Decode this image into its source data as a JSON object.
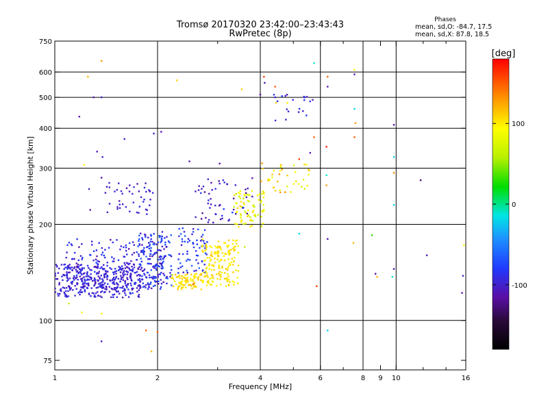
{
  "chart_data": {
    "type": "scatter",
    "title": "Tromsø 20170320 23:42:00–23:43:43",
    "subtitle": "RwPretec (8p)",
    "xlabel": "Frequency [MHz]",
    "ylabel": "Stationary phase Virtual Height [km]",
    "x_scale": "log",
    "y_scale": "log",
    "xlim": [
      1,
      16
    ],
    "ylim": [
      70,
      750
    ],
    "x_ticks": [
      1,
      2,
      4,
      6,
      8,
      9,
      10,
      16
    ],
    "x_tick_labels": [
      "1",
      "2",
      "4",
      "6",
      "8",
      "9",
      "10",
      "16"
    ],
    "x_grid": [
      2,
      4,
      6,
      8,
      10
    ],
    "x_minor_ticks": [
      3,
      5,
      7,
      9,
      12,
      14
    ],
    "y_ticks": [
      75,
      100,
      200,
      300,
      400,
      500,
      600,
      750
    ],
    "y_tick_labels": [
      "75",
      "100",
      "200",
      "300",
      "400",
      "500",
      "600",
      "750"
    ],
    "y_grid": [
      100,
      200,
      300,
      400,
      500,
      600
    ],
    "grid": true,
    "legend": {
      "title": "Phases",
      "lines": [
        "mean, sd,O: -84.7, 17.5",
        "mean, sd,X: 87.8, 18.5"
      ],
      "placement": "top-right"
    },
    "colorbar": {
      "label": "[deg]",
      "range": [
        -180,
        180
      ],
      "ticks": [
        -100,
        0,
        100
      ],
      "tick_labels": [
        "-100",
        "0",
        "100"
      ],
      "colormap": "rainbow: black-purple-blue-cyan-green-yellow-orange-red"
    },
    "clusters": [
      {
        "x": [
          1.0,
          1.78
        ],
        "y": [
          118,
          150
        ],
        "phase": [
          -110,
          -85
        ],
        "n": 340
      },
      {
        "x": [
          1.08,
          2.1
        ],
        "y": [
          125,
          180
        ],
        "phase": [
          -115,
          -75
        ],
        "n": 220
      },
      {
        "x": [
          1.75,
          2.2
        ],
        "y": [
          125,
          190
        ],
        "phase": [
          -110,
          -60
        ],
        "n": 140
      },
      {
        "x": [
          2.2,
          2.7
        ],
        "y": [
          125,
          140
        ],
        "phase": [
          95,
          120
        ],
        "n": 80
      },
      {
        "x": [
          2.3,
          2.8
        ],
        "y": [
          140,
          195
        ],
        "phase": [
          -110,
          -60
        ],
        "n": 70
      },
      {
        "x": [
          2.7,
          3.45
        ],
        "y": [
          128,
          180
        ],
        "phase": [
          90,
          115
        ],
        "n": 170
      },
      {
        "x": [
          3.35,
          4.1
        ],
        "y": [
          195,
          255
        ],
        "phase": [
          60,
          115
        ],
        "n": 80
      },
      {
        "x": [
          2.5,
          3.8
        ],
        "y": [
          200,
          280
        ],
        "phase": [
          -120,
          -80
        ],
        "n": 55
      },
      {
        "x": [
          1.4,
          1.95
        ],
        "y": [
          215,
          270
        ],
        "phase": [
          -110,
          -90
        ],
        "n": 45
      },
      {
        "x": [
          4.0,
          5.6
        ],
        "y": [
          250,
          320
        ],
        "phase": [
          70,
          140
        ],
        "n": 40
      },
      {
        "x": [
          4.3,
          5.7
        ],
        "y": [
          420,
          510
        ],
        "phase": [
          -110,
          -80
        ],
        "n": 20
      }
    ],
    "points": [
      {
        "x": 1.25,
        "y": 580,
        "phase": 120
      },
      {
        "x": 1.37,
        "y": 650,
        "phase": 130
      },
      {
        "x": 1.3,
        "y": 500,
        "phase": -110
      },
      {
        "x": 1.37,
        "y": 500,
        "phase": -100
      },
      {
        "x": 1.18,
        "y": 435,
        "phase": -110
      },
      {
        "x": 1.6,
        "y": 370,
        "phase": -100
      },
      {
        "x": 1.95,
        "y": 385,
        "phase": -100
      },
      {
        "x": 2.05,
        "y": 390,
        "phase": -110
      },
      {
        "x": 2.28,
        "y": 565,
        "phase": 110
      },
      {
        "x": 3.53,
        "y": 530,
        "phase": 110
      },
      {
        "x": 4.1,
        "y": 580,
        "phase": 160
      },
      {
        "x": 4.12,
        "y": 555,
        "phase": -110
      },
      {
        "x": 4.0,
        "y": 510,
        "phase": -110
      },
      {
        "x": 4.42,
        "y": 540,
        "phase": 150
      },
      {
        "x": 4.42,
        "y": 500,
        "phase": -100
      },
      {
        "x": 4.45,
        "y": 480,
        "phase": 110
      },
      {
        "x": 4.8,
        "y": 480,
        "phase": 100
      },
      {
        "x": 5.75,
        "y": 640,
        "phase": -10
      },
      {
        "x": 6.3,
        "y": 580,
        "phase": 150
      },
      {
        "x": 6.3,
        "y": 540,
        "phase": -110
      },
      {
        "x": 7.55,
        "y": 610,
        "phase": 90
      },
      {
        "x": 7.55,
        "y": 590,
        "phase": -110
      },
      {
        "x": 7.55,
        "y": 460,
        "phase": -20
      },
      {
        "x": 7.6,
        "y": 415,
        "phase": 130
      },
      {
        "x": 7.55,
        "y": 375,
        "phase": 150
      },
      {
        "x": 6.25,
        "y": 350,
        "phase": 170
      },
      {
        "x": 5.75,
        "y": 375,
        "phase": 150
      },
      {
        "x": 9.85,
        "y": 410,
        "phase": -110
      },
      {
        "x": 9.85,
        "y": 325,
        "phase": -20
      },
      {
        "x": 9.85,
        "y": 290,
        "phase": 130
      },
      {
        "x": 9.85,
        "y": 230,
        "phase": -20
      },
      {
        "x": 11.8,
        "y": 275,
        "phase": -130
      },
      {
        "x": 6.25,
        "y": 285,
        "phase": -10
      },
      {
        "x": 6.25,
        "y": 265,
        "phase": 130
      },
      {
        "x": 6.3,
        "y": 180,
        "phase": -110
      },
      {
        "x": 7.5,
        "y": 175,
        "phase": 120
      },
      {
        "x": 8.5,
        "y": 185,
        "phase": 30
      },
      {
        "x": 8.7,
        "y": 140,
        "phase": -110
      },
      {
        "x": 8.8,
        "y": 137,
        "phase": 120
      },
      {
        "x": 9.85,
        "y": 145,
        "phase": -110
      },
      {
        "x": 9.75,
        "y": 137,
        "phase": -10
      },
      {
        "x": 12.3,
        "y": 160,
        "phase": -110
      },
      {
        "x": 15.8,
        "y": 172,
        "phase": 100
      },
      {
        "x": 15.7,
        "y": 138,
        "phase": -100
      },
      {
        "x": 15.6,
        "y": 122,
        "phase": -110
      },
      {
        "x": 5.2,
        "y": 187,
        "phase": -20
      },
      {
        "x": 5.85,
        "y": 128,
        "phase": 160
      },
      {
        "x": 6.3,
        "y": 93,
        "phase": -20
      },
      {
        "x": 1.85,
        "y": 93,
        "phase": 150
      },
      {
        "x": 2.0,
        "y": 92,
        "phase": 150
      },
      {
        "x": 1.92,
        "y": 80,
        "phase": 120
      },
      {
        "x": 1.37,
        "y": 86,
        "phase": -110
      },
      {
        "x": 1.37,
        "y": 105,
        "phase": 100
      },
      {
        "x": 1.1,
        "y": 113,
        "phase": 60
      },
      {
        "x": 1.2,
        "y": 106,
        "phase": 90
      },
      {
        "x": 1.22,
        "y": 307,
        "phase": 100
      },
      {
        "x": 1.33,
        "y": 338,
        "phase": -110
      },
      {
        "x": 1.38,
        "y": 325,
        "phase": -100
      },
      {
        "x": 1.37,
        "y": 280,
        "phase": -110
      },
      {
        "x": 1.26,
        "y": 258,
        "phase": -100
      },
      {
        "x": 1.27,
        "y": 222,
        "phase": -110
      },
      {
        "x": 2.48,
        "y": 315,
        "phase": -110
      },
      {
        "x": 3.04,
        "y": 310,
        "phase": -110
      },
      {
        "x": 5.2,
        "y": 320,
        "phase": 160
      },
      {
        "x": 5.6,
        "y": 335,
        "phase": -110
      },
      {
        "x": 2.55,
        "y": 130,
        "phase": 150
      },
      {
        "x": 3.6,
        "y": 170,
        "phase": 60
      }
    ]
  }
}
